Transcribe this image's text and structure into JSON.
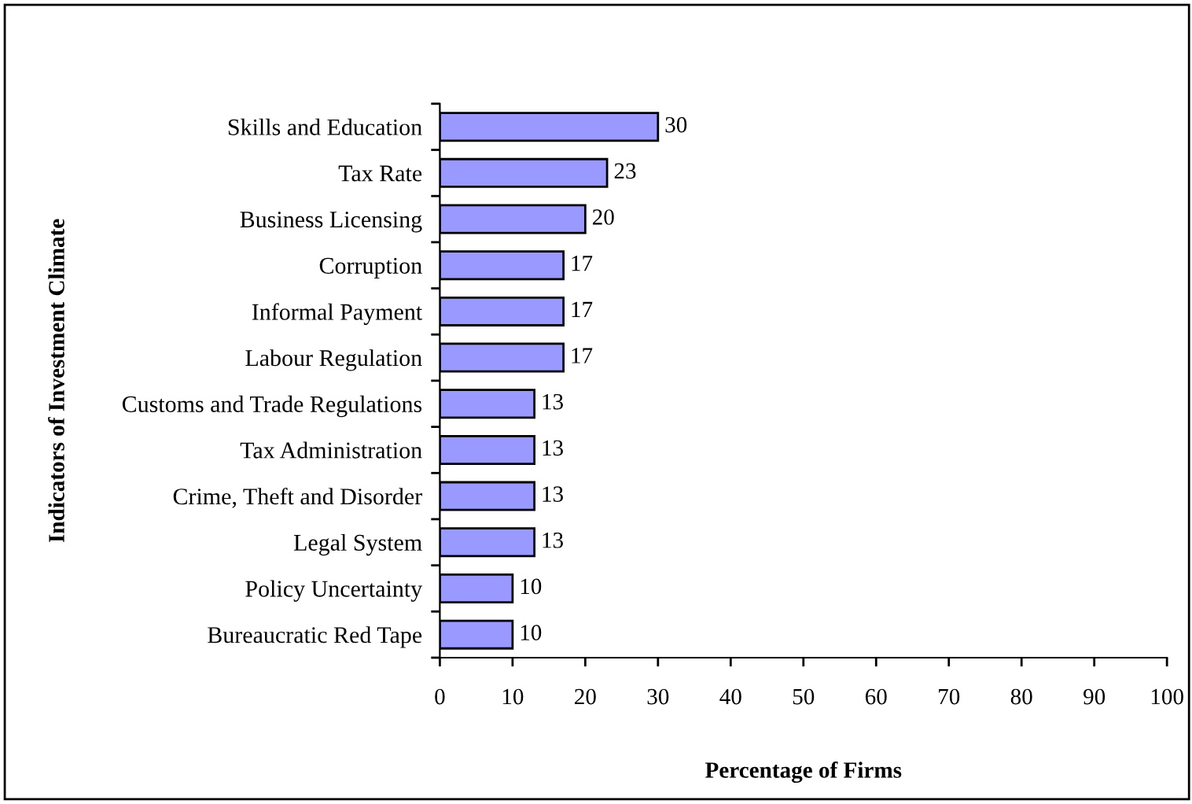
{
  "chart_data": {
    "type": "bar",
    "orientation": "horizontal",
    "categories": [
      "Skills and Education",
      "Tax Rate",
      "Business Licensing",
      "Corruption",
      "Informal Payment",
      "Labour Regulation",
      "Customs and Trade Regulations",
      "Tax Administration",
      "Crime, Theft and Disorder",
      "Legal System",
      "Policy Uncertainty",
      "Bureaucratic Red Tape"
    ],
    "values": [
      30,
      23,
      20,
      17,
      17,
      17,
      13,
      13,
      13,
      13,
      10,
      10
    ],
    "color": "#9999ff",
    "xlabel": "Percentage of Firms",
    "ylabel": "Indicators of Investment Climate",
    "xlim": [
      0,
      100
    ],
    "xticks": [
      0,
      10,
      20,
      30,
      40,
      50,
      60,
      70,
      80,
      90,
      100
    ],
    "data_labels": true
  }
}
